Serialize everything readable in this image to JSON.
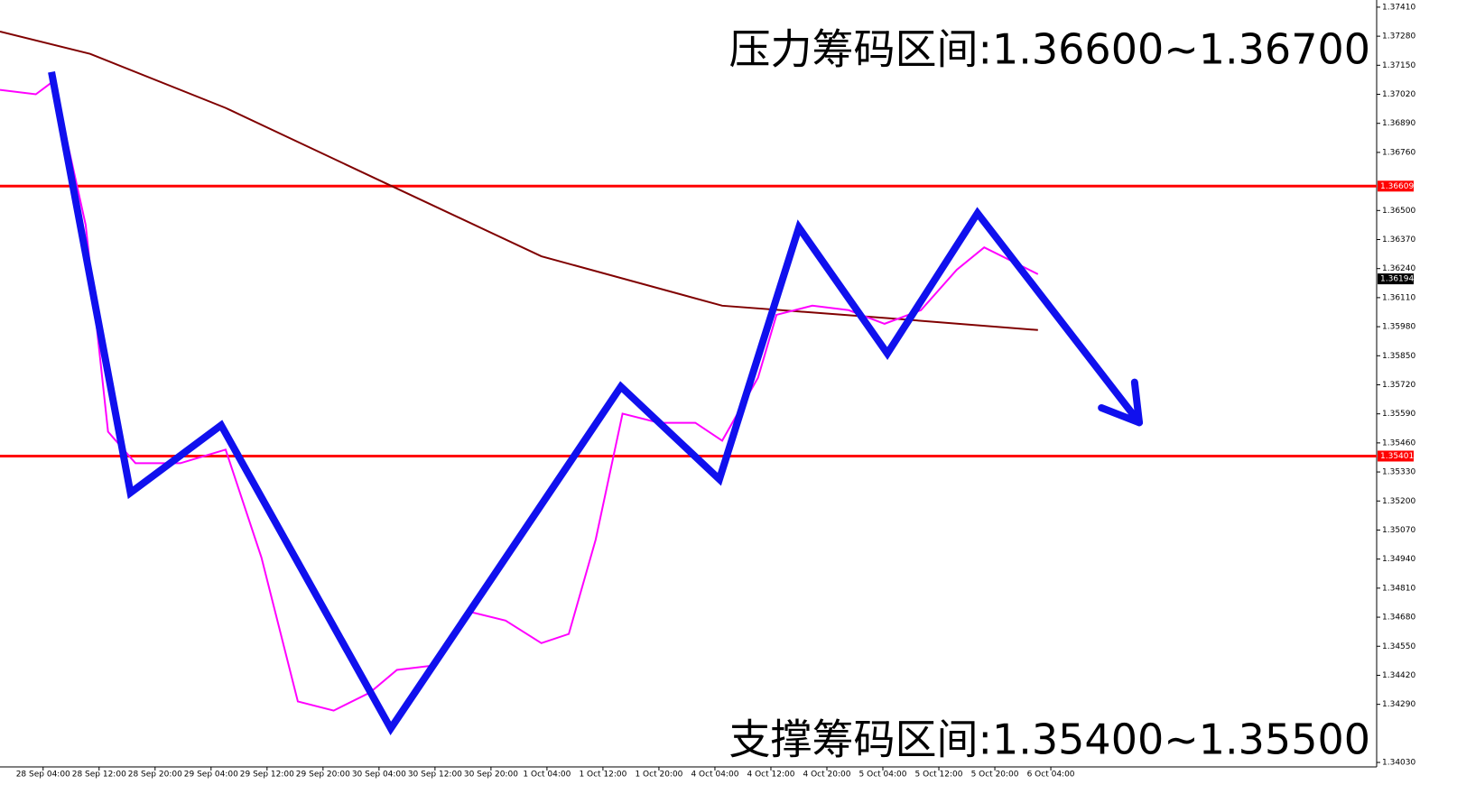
{
  "chart_data": {
    "type": "line",
    "annotations": [
      "压力筹码区间:1.36600~1.36700",
      "支撑筹码区间:1.35400~1.35500"
    ],
    "xlim": [
      -0.77,
      23.82
    ],
    "xticks": [
      {
        "value": 0,
        "label": "28 Sep 04:00"
      },
      {
        "value": 1,
        "label": "28 Sep 12:00"
      },
      {
        "value": 2,
        "label": "28 Sep 20:00"
      },
      {
        "value": 3,
        "label": "29 Sep 04:00"
      },
      {
        "value": 4,
        "label": "29 Sep 12:00"
      },
      {
        "value": 5,
        "label": "29 Sep 20:00"
      },
      {
        "value": 6,
        "label": "30 Sep 04:00"
      },
      {
        "value": 7,
        "label": "30 Sep 12:00"
      },
      {
        "value": 8,
        "label": "30 Sep 20:00"
      },
      {
        "value": 9,
        "label": "1 Oct 04:00"
      },
      {
        "value": 10,
        "label": "1 Oct 12:00"
      },
      {
        "value": 11,
        "label": "1 Oct 20:00"
      },
      {
        "value": 12,
        "label": "4 Oct 04:00"
      },
      {
        "value": 13,
        "label": "4 Oct 12:00"
      },
      {
        "value": 14,
        "label": "4 Oct 20:00"
      },
      {
        "value": 15,
        "label": "5 Oct 04:00"
      },
      {
        "value": 16,
        "label": "5 Oct 12:00"
      },
      {
        "value": 17,
        "label": "5 Oct 20:00"
      },
      {
        "value": 18,
        "label": "6 Oct 04:00"
      }
    ],
    "ylim": [
      1.3401,
      1.37442
    ],
    "yticks": [
      {
        "value": 1.3741,
        "label": "1.37410"
      },
      {
        "value": 1.3728,
        "label": "1.37280"
      },
      {
        "value": 1.3715,
        "label": "1.37150"
      },
      {
        "value": 1.3702,
        "label": "1.37020"
      },
      {
        "value": 1.3689,
        "label": "1.36890"
      },
      {
        "value": 1.3676,
        "label": "1.36760"
      },
      {
        "value": 1.365,
        "label": "1.36500"
      },
      {
        "value": 1.3637,
        "label": "1.36370"
      },
      {
        "value": 1.3624,
        "label": "1.36240"
      },
      {
        "value": 1.3611,
        "label": "1.36110"
      },
      {
        "value": 1.3598,
        "label": "1.35980"
      },
      {
        "value": 1.3585,
        "label": "1.35850"
      },
      {
        "value": 1.3572,
        "label": "1.35720"
      },
      {
        "value": 1.3559,
        "label": "1.35590"
      },
      {
        "value": 1.3546,
        "label": "1.35460"
      },
      {
        "value": 1.3533,
        "label": "1.35330"
      },
      {
        "value": 1.352,
        "label": "1.35200"
      },
      {
        "value": 1.3507,
        "label": "1.35070"
      },
      {
        "value": 1.3494,
        "label": "1.34940"
      },
      {
        "value": 1.3481,
        "label": "1.34810"
      },
      {
        "value": 1.3468,
        "label": "1.34680"
      },
      {
        "value": 1.3455,
        "label": "1.34550"
      },
      {
        "value": 1.3442,
        "label": "1.34420"
      },
      {
        "value": 1.3429,
        "label": "1.34290"
      },
      {
        "value": 1.3403,
        "label": "1.34030"
      }
    ],
    "hlines": [
      {
        "value": 1.36609,
        "label": "1.36609",
        "color": "#ff0000"
      },
      {
        "value": 1.35401,
        "label": "1.35401",
        "color": "#ff0000"
      }
    ],
    "current_price": {
      "value": 1.36194,
      "label": "1.36194"
    },
    "series": [
      {
        "color": "#800000",
        "x": [
          -0.77,
          0.84,
          3.26,
          6.16,
          8.9,
          12.13,
          15.35,
          17.77
        ],
        "values": [
          1.37301,
          1.37201,
          1.36959,
          1.36617,
          1.36295,
          1.36074,
          1.36013,
          1.35965
        ]
      },
      {
        "color": "#ff00ff",
        "x": [
          -0.77,
          -0.13,
          0.19,
          0.76,
          1.16,
          1.65,
          2.45,
          3.26,
          3.9,
          4.55,
          5.19,
          5.84,
          6.32,
          6.97,
          7.61,
          8.26,
          8.9,
          9.39,
          9.87,
          10.35,
          11.0,
          11.65,
          12.13,
          12.77,
          13.1,
          13.74,
          14.39,
          15.03,
          15.68,
          16.32,
          16.81,
          17.29,
          17.77
        ],
        "values": [
          1.3704,
          1.3702,
          1.3708,
          1.36436,
          1.3551,
          1.35369,
          1.35369,
          1.3543,
          1.34947,
          1.34303,
          1.34262,
          1.34343,
          1.34444,
          1.34464,
          1.34705,
          1.34665,
          1.34564,
          1.34605,
          1.35027,
          1.35591,
          1.3555,
          1.3555,
          1.3547,
          1.35752,
          1.36033,
          1.36074,
          1.36054,
          1.35993,
          1.36054,
          1.36235,
          1.36335,
          1.36275,
          1.36215
        ]
      },
      {
        "color": "#1010ee",
        "style": "arrow",
        "x": [
          0.15,
          1.56,
          3.18,
          6.21,
          10.32,
          12.08,
          13.5,
          15.08,
          16.69,
          19.58
        ],
        "values": [
          1.3712,
          1.35237,
          1.35539,
          1.34182,
          1.35712,
          1.35297,
          1.36424,
          1.3586,
          1.36488,
          1.35551
        ]
      }
    ]
  }
}
